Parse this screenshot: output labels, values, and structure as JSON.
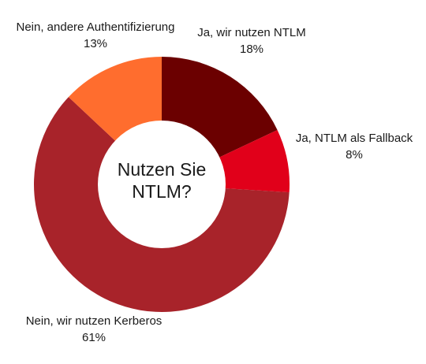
{
  "chart_data": {
    "type": "pie",
    "variant": "donut",
    "center_text": [
      "Nutzen Sie",
      "NTLM?"
    ],
    "slices": [
      {
        "label": "Ja, wir nutzen NTLM",
        "value": 18,
        "display": "18%",
        "color": "#6b0000"
      },
      {
        "label": "Ja, NTLM als Fallback",
        "value": 8,
        "display": "8%",
        "color": "#e1001a"
      },
      {
        "label": "Nein, wir nutzen Kerberos",
        "value": 61,
        "display": "61%",
        "color": "#a8232a"
      },
      {
        "label": "Nein, andere Authentifizierung",
        "value": 13,
        "display": "13%",
        "color": "#ff6d2e"
      }
    ]
  }
}
